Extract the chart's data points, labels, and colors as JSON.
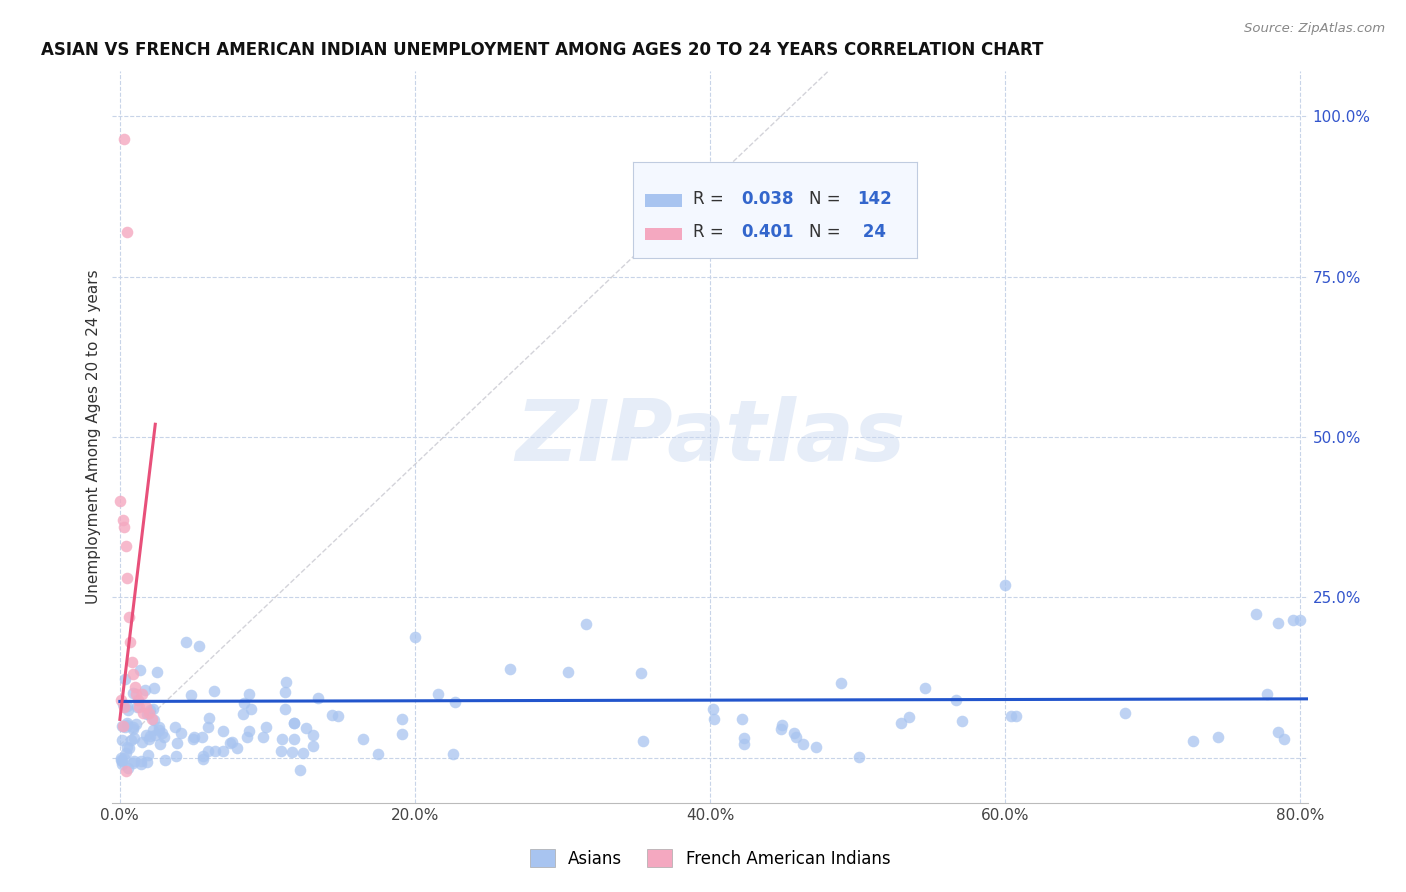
{
  "title": "ASIAN VS FRENCH AMERICAN INDIAN UNEMPLOYMENT AMONG AGES 20 TO 24 YEARS CORRELATION CHART",
  "source": "Source: ZipAtlas.com",
  "ylabel": "Unemployment Among Ages 20 to 24 years",
  "xlim": [
    -0.005,
    0.805
  ],
  "ylim": [
    -0.07,
    1.07
  ],
  "xtick_labels": [
    "0.0%",
    "20.0%",
    "40.0%",
    "60.0%",
    "80.0%"
  ],
  "xtick_vals": [
    0.0,
    0.2,
    0.4,
    0.6,
    0.8
  ],
  "ytick_labels": [
    "100.0%",
    "75.0%",
    "50.0%",
    "25.0%"
  ],
  "ytick_vals": [
    1.0,
    0.75,
    0.5,
    0.25
  ],
  "asian_color": "#a8c4f0",
  "french_color": "#f4a8c0",
  "asian_line_color": "#2255cc",
  "french_line_color": "#e8507a",
  "diag_color": "#c8c8d0",
  "background_color": "#ffffff",
  "grid_color": "#c8d4e8",
  "legend_bg": "#f4f8ff",
  "legend_border": "#c0cce0",
  "title_color": "#111111",
  "source_color": "#888888",
  "ylabel_color": "#333333",
  "right_tick_color": "#3355cc"
}
